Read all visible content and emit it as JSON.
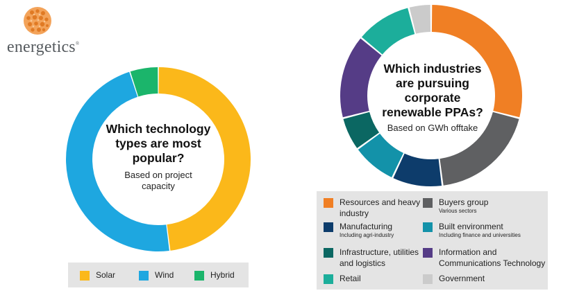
{
  "brand": {
    "name": "energetics",
    "mark": "®"
  },
  "chart_data": [
    {
      "type": "pie",
      "variant": "donut",
      "title": "Which technology types are most popular?",
      "subtitle": "Based on project capacity",
      "categories": [
        "Solar",
        "Wind",
        "Hybrid"
      ],
      "values": [
        48,
        47,
        5
      ],
      "colors": [
        "#fbb81a",
        "#1ea7e0",
        "#1bb56b"
      ],
      "legend": {
        "placement": "bottom"
      }
    },
    {
      "type": "pie",
      "variant": "donut",
      "title": "Which industries are pursuing corporate renewable PPAs?",
      "subtitle": "Based on GWh offtake",
      "categories": [
        "Resources and heavy industry",
        "Buyers group",
        "Manufacturing",
        "Built environment",
        "Infrastructure, utilities and logistics",
        "Information and Communications Technology",
        "Retail",
        "Government"
      ],
      "notes": [
        "",
        "Various sectors",
        "Including agri-industry",
        "Including finance and universities",
        "",
        "",
        "",
        ""
      ],
      "values": [
        29,
        19,
        9,
        8,
        6,
        15,
        10,
        4
      ],
      "colors": [
        "#f07f24",
        "#5f6062",
        "#0d3c6b",
        "#1392a9",
        "#0b6762",
        "#553c86",
        "#1cae9b",
        "#cbcbcb"
      ],
      "legend": {
        "placement": "bottom"
      }
    }
  ]
}
